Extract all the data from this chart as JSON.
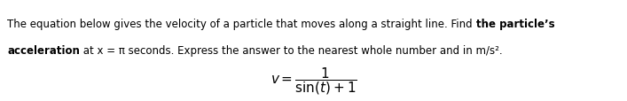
{
  "figsize": [
    7.07,
    1.15
  ],
  "dpi": 100,
  "background_color": "#ffffff",
  "line1_part1": "The equation below gives the velocity of a particle that moves along a straight line. Find ",
  "line1_part2": "the particle’s",
  "line2_part1": "acceleration",
  "line2_part2": " at x = π seconds. Express the answer to the nearest whole number and in m/s².",
  "formula": "$v = \\dfrac{1}{\\sin(t) + 1}$",
  "font_size_text": 8.5,
  "font_size_formula": 11,
  "text_color": "#000000",
  "font_family": "DejaVu Sans"
}
